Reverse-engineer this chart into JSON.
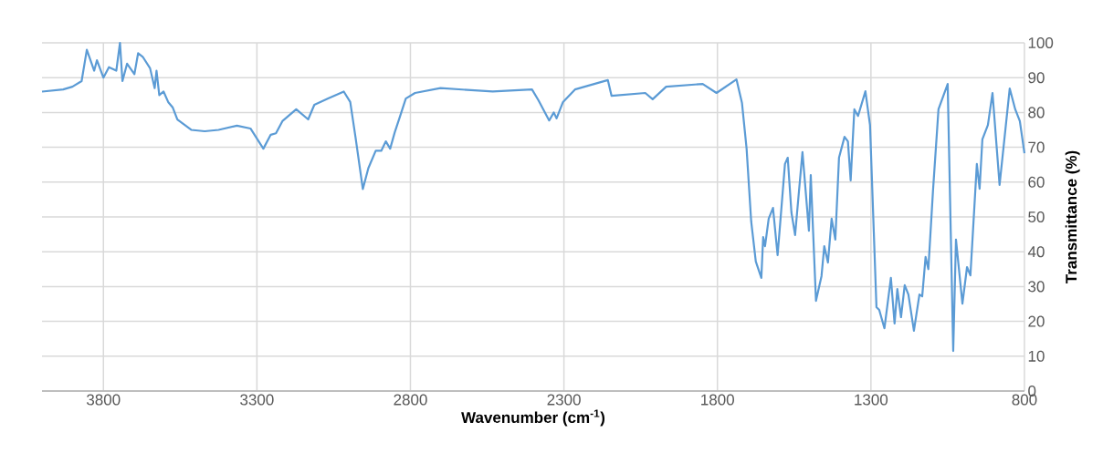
{
  "chart_data": {
    "type": "line",
    "xlabel": "Wavenumber (cm$^{-1}$)",
    "ylabel": "Transmittance (%)",
    "xlim": [
      4000,
      800
    ],
    "xticks": [
      3800,
      3300,
      2800,
      2300,
      1800,
      1300,
      800
    ],
    "ylim": [
      0,
      100
    ],
    "yticks": [
      0,
      10,
      20,
      30,
      40,
      50,
      60,
      70,
      80,
      90,
      100
    ],
    "grid": true,
    "marker": "none",
    "line_style": "solid",
    "series": [
      {
        "color": "#5b9bd5",
        "x": [
          4000,
          3931,
          3901,
          3871,
          3854,
          3830,
          3821,
          3800,
          3782,
          3758,
          3746,
          3738,
          3723,
          3699,
          3687,
          3672,
          3648,
          3633,
          3627,
          3618,
          3604,
          3589,
          3574,
          3559,
          3544,
          3514,
          3470,
          3425,
          3365,
          3321,
          3279,
          3255,
          3238,
          3217,
          3172,
          3133,
          3113,
          3068,
          3017,
          2996,
          2979,
          2955,
          2937,
          2913,
          2895,
          2880,
          2866,
          2851,
          2836,
          2815,
          2785,
          2702,
          2532,
          2404,
          2383,
          2348,
          2333,
          2324,
          2303,
          2264,
          2157,
          2145,
          2035,
          2011,
          1967,
          1848,
          1803,
          1738,
          1720,
          1705,
          1690,
          1675,
          1657,
          1651,
          1645,
          1633,
          1619,
          1604,
          1580,
          1571,
          1559,
          1547,
          1535,
          1523,
          1502,
          1496,
          1479,
          1461,
          1452,
          1440,
          1428,
          1416,
          1404,
          1386,
          1375,
          1366,
          1354,
          1342,
          1318,
          1306,
          1303,
          1282,
          1273,
          1256,
          1235,
          1223,
          1214,
          1202,
          1190,
          1178,
          1160,
          1142,
          1133,
          1122,
          1113,
          1098,
          1080,
          1050,
          1032,
          1023,
          1002,
          987,
          976,
          955,
          946,
          937,
          919,
          904,
          881,
          848,
          830,
          815,
          800
        ],
        "values": [
          86,
          86.6,
          87.4,
          89,
          98,
          92,
          95,
          90,
          93,
          92,
          100,
          89,
          94,
          91,
          97,
          96,
          92.7,
          87,
          92,
          85,
          86,
          83,
          81.4,
          78,
          77,
          75,
          74.6,
          75,
          76.2,
          75.4,
          69.6,
          73.6,
          74,
          77.5,
          80.9,
          78,
          82.2,
          84,
          86,
          83,
          73,
          58,
          64,
          69,
          69,
          71.7,
          69.6,
          74.3,
          78.3,
          84,
          85.6,
          87,
          86,
          86.6,
          83.5,
          77.7,
          80,
          78.3,
          83,
          86.6,
          89.3,
          84.8,
          85.6,
          83.8,
          87.4,
          88.2,
          85.6,
          89.5,
          82.7,
          69.6,
          48.7,
          37.2,
          32.5,
          44.2,
          41.6,
          49.5,
          52.6,
          39,
          65.2,
          67,
          51.3,
          44.8,
          56.8,
          68.6,
          46,
          62,
          25.9,
          33,
          41.6,
          36.9,
          49.5,
          43.5,
          67,
          73,
          71.7,
          60.5,
          80.9,
          79,
          86.1,
          78.3,
          76.4,
          24.1,
          23.3,
          18,
          32.5,
          19.4,
          29.3,
          21.2,
          30.4,
          27.7,
          17.3,
          27.7,
          27.2,
          38.5,
          35,
          57.3,
          80.9,
          88.2,
          11.5,
          43.5,
          25.1,
          35.6,
          33.2,
          65.2,
          58.1,
          72.3,
          76.4,
          85.6,
          59.2,
          86.9,
          80.9,
          77.5,
          68.3
        ]
      }
    ]
  }
}
